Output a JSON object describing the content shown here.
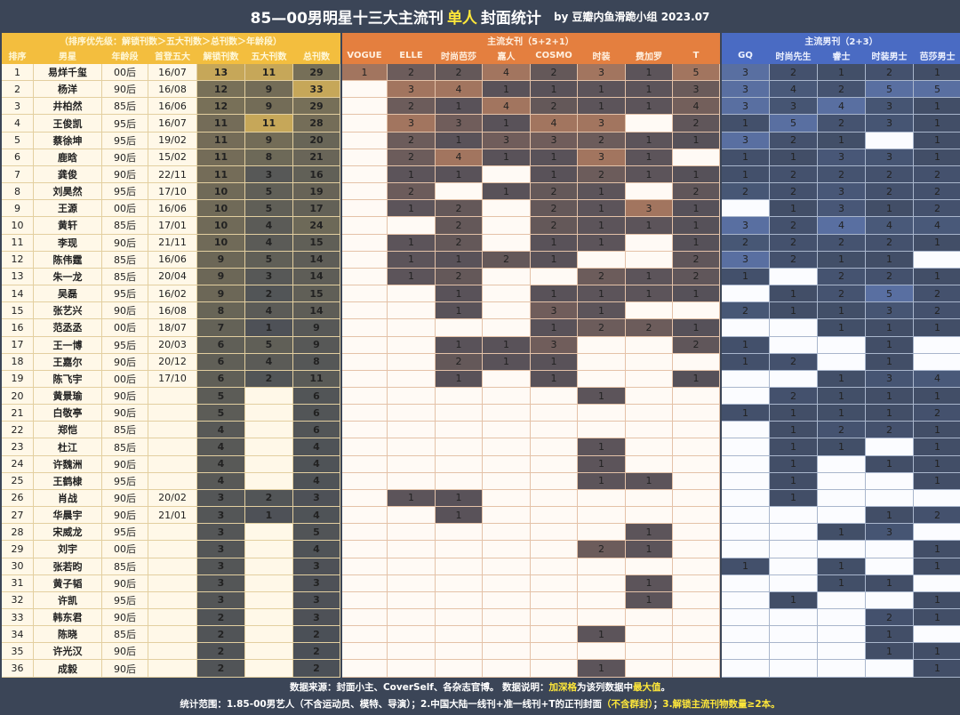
{
  "title": {
    "main": "85—00男明星十三大主流刊",
    "highlight": "单人",
    "tail": "封面统计",
    "by": "by 豆瓣内鱼滑跪小组 2023.07"
  },
  "groups": {
    "left": "（排序优先级：解锁刊数＞五大刊数＞总刊数＞年龄段）",
    "women": "主流女刊（5+2+1）",
    "men": "主流男刊（2+3）"
  },
  "headers": [
    "排序",
    "男星",
    "年龄段",
    "首登五大",
    "解锁刊数",
    "五大刊数",
    "总刊数",
    "VOGUE",
    "ELLE",
    "时尚芭莎",
    "嘉人",
    "COSMO",
    "时装",
    "费加罗",
    "T",
    "GQ",
    "时尚先生",
    "睿士",
    "时装男士",
    "芭莎男士"
  ],
  "colors": {
    "yellow": "#f3be3e",
    "orange": "#e47f3f",
    "blue": "#4a6bc3",
    "dark": "#3b4557"
  },
  "rows": [
    [
      "1",
      "易烊千玺",
      "00后",
      "16/07",
      "13",
      "11",
      "29",
      "1",
      "2",
      "2",
      "4",
      "2",
      "3",
      "1",
      "5",
      "3",
      "2",
      "1",
      "2",
      "1"
    ],
    [
      "2",
      "杨洋",
      "90后",
      "16/08",
      "12",
      "9",
      "33",
      "",
      "3",
      "4",
      "1",
      "1",
      "1",
      "1",
      "3",
      "3",
      "4",
      "2",
      "5",
      "5"
    ],
    [
      "3",
      "井柏然",
      "85后",
      "16/06",
      "12",
      "9",
      "29",
      "",
      "2",
      "1",
      "4",
      "2",
      "1",
      "1",
      "4",
      "3",
      "3",
      "4",
      "3",
      "1"
    ],
    [
      "4",
      "王俊凯",
      "95后",
      "16/07",
      "11",
      "11",
      "28",
      "",
      "3",
      "3",
      "1",
      "4",
      "3",
      "",
      "2",
      "1",
      "5",
      "2",
      "3",
      "1"
    ],
    [
      "5",
      "蔡徐坤",
      "95后",
      "19/02",
      "11",
      "9",
      "20",
      "",
      "2",
      "1",
      "3",
      "3",
      "2",
      "1",
      "1",
      "3",
      "2",
      "1",
      "",
      "1"
    ],
    [
      "6",
      "鹿晗",
      "90后",
      "15/02",
      "11",
      "8",
      "21",
      "",
      "2",
      "4",
      "1",
      "1",
      "3",
      "1",
      "",
      "1",
      "1",
      "3",
      "3",
      "1"
    ],
    [
      "7",
      "龚俊",
      "90后",
      "22/11",
      "11",
      "3",
      "16",
      "",
      "1",
      "1",
      "",
      "1",
      "2",
      "1",
      "1",
      "1",
      "2",
      "2",
      "2",
      "2"
    ],
    [
      "8",
      "刘昊然",
      "95后",
      "17/10",
      "10",
      "5",
      "19",
      "",
      "2",
      "",
      "1",
      "2",
      "1",
      "",
      "2",
      "2",
      "2",
      "3",
      "2",
      "2"
    ],
    [
      "9",
      "王源",
      "00后",
      "16/06",
      "10",
      "5",
      "17",
      "",
      "1",
      "2",
      "",
      "2",
      "1",
      "3",
      "1",
      "",
      "1",
      "3",
      "1",
      "2"
    ],
    [
      "10",
      "黄轩",
      "85后",
      "17/01",
      "10",
      "4",
      "24",
      "",
      "",
      "2",
      "",
      "2",
      "1",
      "1",
      "1",
      "3",
      "2",
      "4",
      "4",
      "4"
    ],
    [
      "11",
      "李现",
      "90后",
      "21/11",
      "10",
      "4",
      "15",
      "",
      "1",
      "2",
      "",
      "1",
      "1",
      "",
      "1",
      "2",
      "2",
      "2",
      "2",
      "1"
    ],
    [
      "12",
      "陈伟霆",
      "85后",
      "16/06",
      "9",
      "5",
      "14",
      "",
      "1",
      "1",
      "2",
      "1",
      "",
      "",
      "2",
      "3",
      "2",
      "1",
      "1",
      ""
    ],
    [
      "13",
      "朱一龙",
      "85后",
      "20/04",
      "9",
      "3",
      "14",
      "",
      "1",
      "2",
      "",
      "",
      "2",
      "1",
      "2",
      "1",
      "",
      "2",
      "2",
      "1"
    ],
    [
      "14",
      "吴磊",
      "95后",
      "16/02",
      "9",
      "2",
      "15",
      "",
      "",
      "1",
      "",
      "1",
      "1",
      "1",
      "1",
      "",
      "1",
      "2",
      "5",
      "2"
    ],
    [
      "15",
      "张艺兴",
      "90后",
      "16/08",
      "8",
      "4",
      "14",
      "",
      "",
      "1",
      "",
      "3",
      "1",
      "",
      "",
      "2",
      "1",
      "1",
      "3",
      "2"
    ],
    [
      "16",
      "范丞丞",
      "00后",
      "18/07",
      "7",
      "1",
      "9",
      "",
      "",
      "",
      "",
      "1",
      "2",
      "2",
      "1",
      "",
      "",
      "1",
      "1",
      "1"
    ],
    [
      "17",
      "王一博",
      "95后",
      "20/03",
      "6",
      "5",
      "9",
      "",
      "",
      "1",
      "1",
      "3",
      "",
      "",
      "2",
      "1",
      "",
      "",
      "1",
      ""
    ],
    [
      "18",
      "王嘉尔",
      "90后",
      "20/12",
      "6",
      "4",
      "8",
      "",
      "",
      "2",
      "1",
      "1",
      "",
      "",
      "",
      "1",
      "2",
      "",
      "1",
      ""
    ],
    [
      "19",
      "陈飞宇",
      "00后",
      "17/10",
      "6",
      "2",
      "11",
      "",
      "",
      "1",
      "",
      "1",
      "",
      "",
      "1",
      "",
      "",
      "1",
      "3",
      "4"
    ],
    [
      "20",
      "黄景瑜",
      "90后",
      "",
      "5",
      "",
      "6",
      "",
      "",
      "",
      "",
      "",
      "1",
      "",
      "",
      "",
      "2",
      "1",
      "1",
      "1"
    ],
    [
      "21",
      "白敬亭",
      "90后",
      "",
      "5",
      "",
      "6",
      "",
      "",
      "",
      "",
      "",
      "",
      "",
      "",
      "1",
      "1",
      "1",
      "1",
      "2"
    ],
    [
      "22",
      "郑恺",
      "85后",
      "",
      "4",
      "",
      "6",
      "",
      "",
      "",
      "",
      "",
      "",
      "",
      "",
      "",
      "1",
      "2",
      "2",
      "1"
    ],
    [
      "23",
      "杜江",
      "85后",
      "",
      "4",
      "",
      "4",
      "",
      "",
      "",
      "",
      "",
      "1",
      "",
      "",
      "",
      "1",
      "1",
      "",
      "1"
    ],
    [
      "24",
      "许魏洲",
      "90后",
      "",
      "4",
      "",
      "4",
      "",
      "",
      "",
      "",
      "",
      "1",
      "",
      "",
      "",
      "1",
      "",
      "1",
      "1"
    ],
    [
      "25",
      "王鹤棣",
      "95后",
      "",
      "4",
      "",
      "4",
      "",
      "",
      "",
      "",
      "",
      "1",
      "1",
      "",
      "",
      "1",
      "",
      "",
      "1"
    ],
    [
      "26",
      "肖战",
      "90后",
      "20/02",
      "3",
      "2",
      "3",
      "",
      "1",
      "1",
      "",
      "",
      "",
      "",
      "",
      "",
      "1",
      "",
      "",
      ""
    ],
    [
      "27",
      "华晨宇",
      "90后",
      "21/01",
      "3",
      "1",
      "4",
      "",
      "",
      "1",
      "",
      "",
      "",
      "",
      "",
      "",
      "",
      "",
      "1",
      "2"
    ],
    [
      "28",
      "宋威龙",
      "95后",
      "",
      "3",
      "",
      "5",
      "",
      "",
      "",
      "",
      "",
      "",
      "1",
      "",
      "",
      "",
      "1",
      "3",
      ""
    ],
    [
      "29",
      "刘宇",
      "00后",
      "",
      "3",
      "",
      "4",
      "",
      "",
      "",
      "",
      "",
      "2",
      "1",
      "",
      "",
      "",
      "",
      "",
      "1"
    ],
    [
      "30",
      "张若昀",
      "85后",
      "",
      "3",
      "",
      "3",
      "",
      "",
      "",
      "",
      "",
      "",
      "",
      "",
      "1",
      "",
      "1",
      "",
      "1"
    ],
    [
      "31",
      "黄子韬",
      "90后",
      "",
      "3",
      "",
      "3",
      "",
      "",
      "",
      "",
      "",
      "",
      "1",
      "",
      "",
      "",
      "1",
      "1",
      ""
    ],
    [
      "32",
      "许凯",
      "95后",
      "",
      "3",
      "",
      "3",
      "",
      "",
      "",
      "",
      "",
      "",
      "1",
      "",
      "",
      "1",
      "",
      "",
      "1"
    ],
    [
      "33",
      "韩东君",
      "90后",
      "",
      "2",
      "",
      "3",
      "",
      "",
      "",
      "",
      "",
      "",
      "",
      "",
      "",
      "",
      "",
      "2",
      "1"
    ],
    [
      "34",
      "陈晓",
      "85后",
      "",
      "2",
      "",
      "2",
      "",
      "",
      "",
      "",
      "",
      "1",
      "",
      "",
      "",
      "",
      "",
      "1",
      ""
    ],
    [
      "35",
      "许光汉",
      "90后",
      "",
      "2",
      "",
      "2",
      "",
      "",
      "",
      "",
      "",
      "",
      "",
      "",
      "",
      "",
      "",
      "1",
      "1"
    ],
    [
      "36",
      "成毅",
      "90后",
      "",
      "2",
      "",
      "2",
      "",
      "",
      "",
      "",
      "",
      "1",
      "",
      "",
      "",
      "",
      "",
      "",
      "1"
    ]
  ],
  "footer": {
    "l1a": "数据来源：封面小主、CoverSelf、各杂志官博。 数据说明：",
    "l1b": "加深格",
    "l1c": "为该列数据中",
    "l1d": "最大值",
    "l1e": "。",
    "l2a": "统计范围：1.85-00男艺人（不含运动员、模特、导演）；2.中国大陆一线刊+准一线刊+T的正刊封面",
    "l2b": "（不含群封）",
    "l2c": "；",
    "l2d": "3.解锁主流刊物数量≥2本。"
  }
}
